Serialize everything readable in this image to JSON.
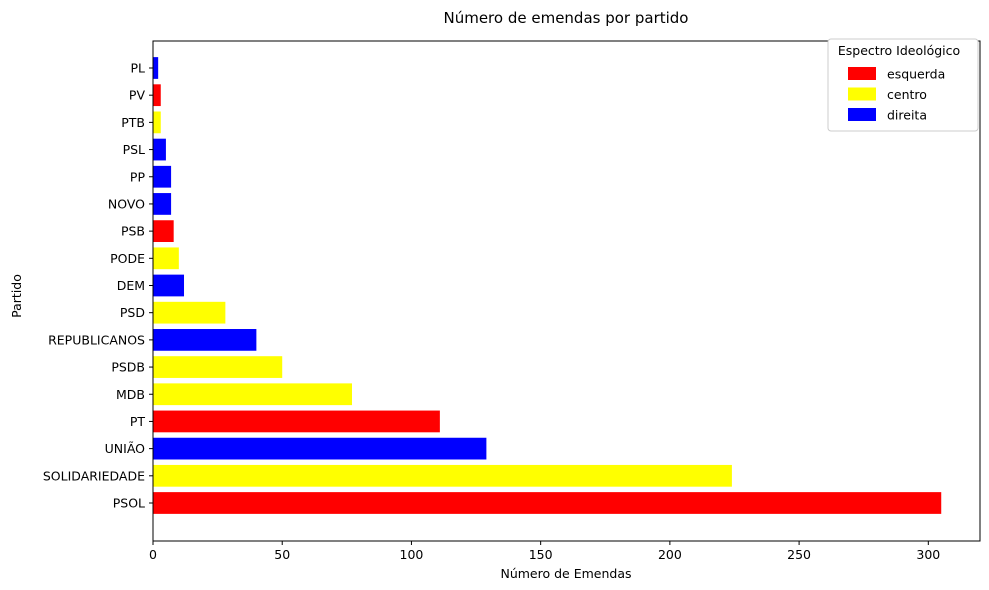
{
  "chart_data": {
    "type": "bar",
    "orientation": "horizontal",
    "title": "Número de emendas por partido",
    "xlabel": "Número de Emendas",
    "ylabel": "Partido",
    "xlim": [
      0,
      320
    ],
    "xticks": [
      0,
      50,
      100,
      150,
      200,
      250,
      300
    ],
    "grid": false,
    "categories": [
      "PSOL",
      "SOLIDARIEDADE",
      "UNIÃO",
      "PT",
      "MDB",
      "PSDB",
      "REPUBLICANOS",
      "PSD",
      "DEM",
      "PODE",
      "PSB",
      "NOVO",
      "PP",
      "PSL",
      "PTB",
      "PV",
      "PL"
    ],
    "values": [
      305,
      224,
      129,
      111,
      77,
      50,
      40,
      28,
      12,
      10,
      8,
      7,
      7,
      5,
      3,
      3,
      2
    ],
    "groups": [
      "esquerda",
      "centro",
      "direita",
      "esquerda",
      "centro",
      "centro",
      "direita",
      "centro",
      "direita",
      "centro",
      "esquerda",
      "direita",
      "direita",
      "direita",
      "centro",
      "esquerda",
      "direita"
    ],
    "legend": {
      "title": "Espectro Ideológico",
      "placement": "top-right",
      "entries": [
        {
          "label": "esquerda",
          "color": "#ff0000"
        },
        {
          "label": "centro",
          "color": "#ffff00"
        },
        {
          "label": "direita",
          "color": "#0000ff"
        }
      ]
    }
  }
}
